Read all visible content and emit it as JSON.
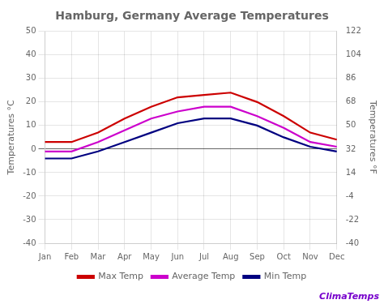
{
  "chart_data": {
    "type": "line",
    "title": "Hamburg, Germany Average Temperatures",
    "categories": [
      "Jan",
      "Feb",
      "Mar",
      "Apr",
      "May",
      "Jun",
      "Jul",
      "Aug",
      "Sep",
      "Oct",
      "Nov",
      "Dec"
    ],
    "series": [
      {
        "name": "Max Temp",
        "color": "#cc0000",
        "values": [
          3,
          3,
          7,
          13,
          18,
          22,
          23,
          24,
          20,
          14,
          7,
          4
        ]
      },
      {
        "name": "Average Temp",
        "color": "#cc00cc",
        "values": [
          -1,
          -1,
          3,
          8,
          13,
          16,
          18,
          18,
          14,
          9,
          3,
          1
        ]
      },
      {
        "name": "Min Temp",
        "color": "#000080",
        "values": [
          -4,
          -4,
          -1,
          3,
          7,
          11,
          13,
          13,
          10,
          5,
          1,
          -1
        ]
      }
    ],
    "ylabel": "Temperatures °C",
    "y2label": "Temperatures °F",
    "ylim": [
      -40,
      50
    ],
    "yticks": [
      -40,
      -30,
      -20,
      -10,
      0,
      10,
      20,
      30,
      40,
      50
    ],
    "y2lim": [
      -40,
      122
    ],
    "y2ticks": [
      -40,
      -22,
      -4,
      14,
      32,
      50,
      68,
      86,
      104,
      122
    ],
    "grid": true,
    "legend": "bottom",
    "annotations": [
      {
        "text": "ClimaTemps",
        "color": "#7700cc"
      }
    ]
  }
}
